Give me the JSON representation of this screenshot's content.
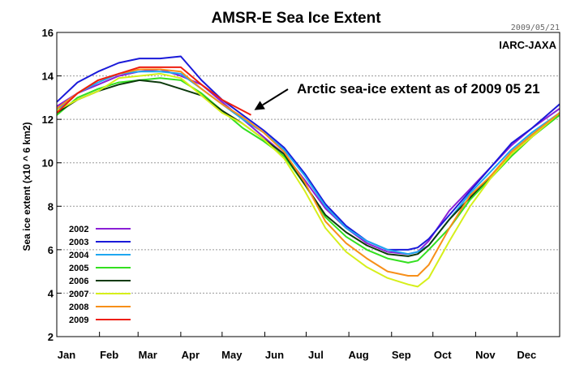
{
  "chart_data": {
    "type": "line",
    "title": "AMSR-E Sea Ice Extent",
    "date_stamp": "2009/05/21",
    "source": "IARC-JAXA",
    "ylabel": "Sea ice extent (x10 ^ 6 km2)",
    "xlabel": "",
    "ylim": [
      2,
      16
    ],
    "yticks": [
      "2",
      "4",
      "6",
      "8",
      "10",
      "12",
      "14",
      "16"
    ],
    "xlim": [
      0,
      365
    ],
    "x_ticks": [
      "Jan",
      "Feb",
      "Mar",
      "Apr",
      "May",
      "Jun",
      "Jul",
      "Aug",
      "Sep",
      "Oct",
      "Nov",
      "Dec"
    ],
    "x_unit": "day of year",
    "grid": "horizontal dashed",
    "legend_placement": "bottom-left",
    "annotation": {
      "text": "Arctic sea-ice extent as of 2009 05 21",
      "points_to": {
        "x": 141,
        "y": 12.2
      }
    },
    "series": [
      {
        "name": "2002",
        "color": "#8a1fd6",
        "x": [
          0,
          15,
          30,
          45,
          60,
          75,
          90,
          105,
          120,
          135,
          150,
          165,
          180,
          195,
          210,
          225,
          240,
          255,
          262,
          270,
          285,
          300,
          315,
          330,
          345,
          365
        ],
        "values": [
          12.6,
          13.2,
          13.6,
          14.0,
          14.2,
          14.3,
          14.0,
          13.6,
          12.8,
          12.0,
          11.2,
          10.4,
          9.2,
          7.9,
          7.0,
          6.3,
          5.9,
          5.8,
          5.9,
          6.4,
          7.8,
          8.8,
          9.8,
          10.8,
          11.6,
          12.5
        ]
      },
      {
        "name": "2003",
        "color": "#1a1ad9",
        "x": [
          0,
          15,
          30,
          45,
          60,
          75,
          90,
          105,
          120,
          135,
          150,
          165,
          180,
          195,
          210,
          225,
          240,
          255,
          262,
          270,
          285,
          300,
          315,
          330,
          345,
          365
        ],
        "values": [
          12.8,
          13.7,
          14.2,
          14.6,
          14.8,
          14.8,
          14.9,
          13.8,
          12.9,
          12.2,
          11.5,
          10.7,
          9.5,
          8.1,
          7.1,
          6.4,
          6.0,
          6.0,
          6.1,
          6.5,
          7.6,
          8.7,
          9.8,
          10.9,
          11.6,
          12.7
        ]
      },
      {
        "name": "2004",
        "color": "#1ea7f0",
        "x": [
          0,
          15,
          30,
          45,
          60,
          75,
          90,
          105,
          120,
          135,
          150,
          165,
          180,
          195,
          210,
          225,
          240,
          255,
          262,
          270,
          285,
          300,
          315,
          330,
          345,
          365
        ],
        "values": [
          12.4,
          13.2,
          13.7,
          14.1,
          14.2,
          14.2,
          14.1,
          13.4,
          12.7,
          12.0,
          11.4,
          10.6,
          9.4,
          8.0,
          7.0,
          6.4,
          6.0,
          5.8,
          5.9,
          6.2,
          7.4,
          8.6,
          9.6,
          10.6,
          11.4,
          12.3
        ]
      },
      {
        "name": "2005",
        "color": "#33e01f",
        "x": [
          0,
          15,
          30,
          45,
          60,
          75,
          90,
          105,
          120,
          135,
          150,
          165,
          180,
          195,
          210,
          225,
          240,
          255,
          262,
          270,
          285,
          300,
          315,
          330,
          345,
          365
        ],
        "values": [
          12.2,
          13.0,
          13.4,
          13.7,
          13.8,
          13.9,
          13.8,
          13.2,
          12.4,
          11.6,
          11.0,
          10.3,
          9.0,
          7.5,
          6.6,
          6.0,
          5.6,
          5.4,
          5.5,
          6.0,
          7.0,
          8.3,
          9.3,
          10.3,
          11.2,
          12.2
        ]
      },
      {
        "name": "2006",
        "color": "#0d3b0d",
        "x": [
          0,
          15,
          30,
          45,
          60,
          75,
          90,
          105,
          120,
          135,
          150,
          165,
          180,
          195,
          210,
          225,
          240,
          255,
          262,
          270,
          285,
          300,
          315,
          330,
          345,
          365
        ],
        "values": [
          12.3,
          12.9,
          13.3,
          13.6,
          13.8,
          13.7,
          13.4,
          13.1,
          12.4,
          11.8,
          11.1,
          10.4,
          9.0,
          7.6,
          6.8,
          6.2,
          5.8,
          5.7,
          5.8,
          6.2,
          7.4,
          8.4,
          9.4,
          10.4,
          11.2,
          12.3
        ]
      },
      {
        "name": "2007",
        "color": "#d6ef1a",
        "x": [
          0,
          15,
          30,
          45,
          60,
          75,
          90,
          105,
          120,
          135,
          150,
          165,
          180,
          195,
          210,
          225,
          240,
          255,
          262,
          270,
          285,
          300,
          315,
          330,
          345,
          365
        ],
        "values": [
          12.4,
          12.9,
          13.3,
          13.9,
          14.0,
          14.1,
          13.9,
          13.1,
          12.3,
          11.8,
          11.1,
          10.2,
          8.7,
          7.0,
          5.9,
          5.2,
          4.7,
          4.4,
          4.3,
          4.7,
          6.4,
          8.0,
          9.3,
          10.4,
          11.2,
          12.3
        ]
      },
      {
        "name": "2008",
        "color": "#f78f19",
        "x": [
          0,
          15,
          30,
          45,
          60,
          75,
          90,
          105,
          120,
          135,
          150,
          165,
          180,
          195,
          210,
          225,
          240,
          255,
          262,
          270,
          285,
          300,
          315,
          330,
          345,
          365
        ],
        "values": [
          12.5,
          13.2,
          13.8,
          14.1,
          14.3,
          14.3,
          14.2,
          13.4,
          12.7,
          12.1,
          11.4,
          10.5,
          9.1,
          7.3,
          6.3,
          5.6,
          5.0,
          4.8,
          4.8,
          5.3,
          7.0,
          8.5,
          9.4,
          10.5,
          11.3,
          12.3
        ]
      },
      {
        "name": "2009",
        "color": "#ee1e10",
        "x": [
          0,
          15,
          30,
          45,
          60,
          75,
          90,
          105,
          120,
          135,
          141
        ],
        "values": [
          12.3,
          13.2,
          13.8,
          14.1,
          14.4,
          14.4,
          14.4,
          13.6,
          12.9,
          12.4,
          12.2
        ]
      }
    ]
  }
}
